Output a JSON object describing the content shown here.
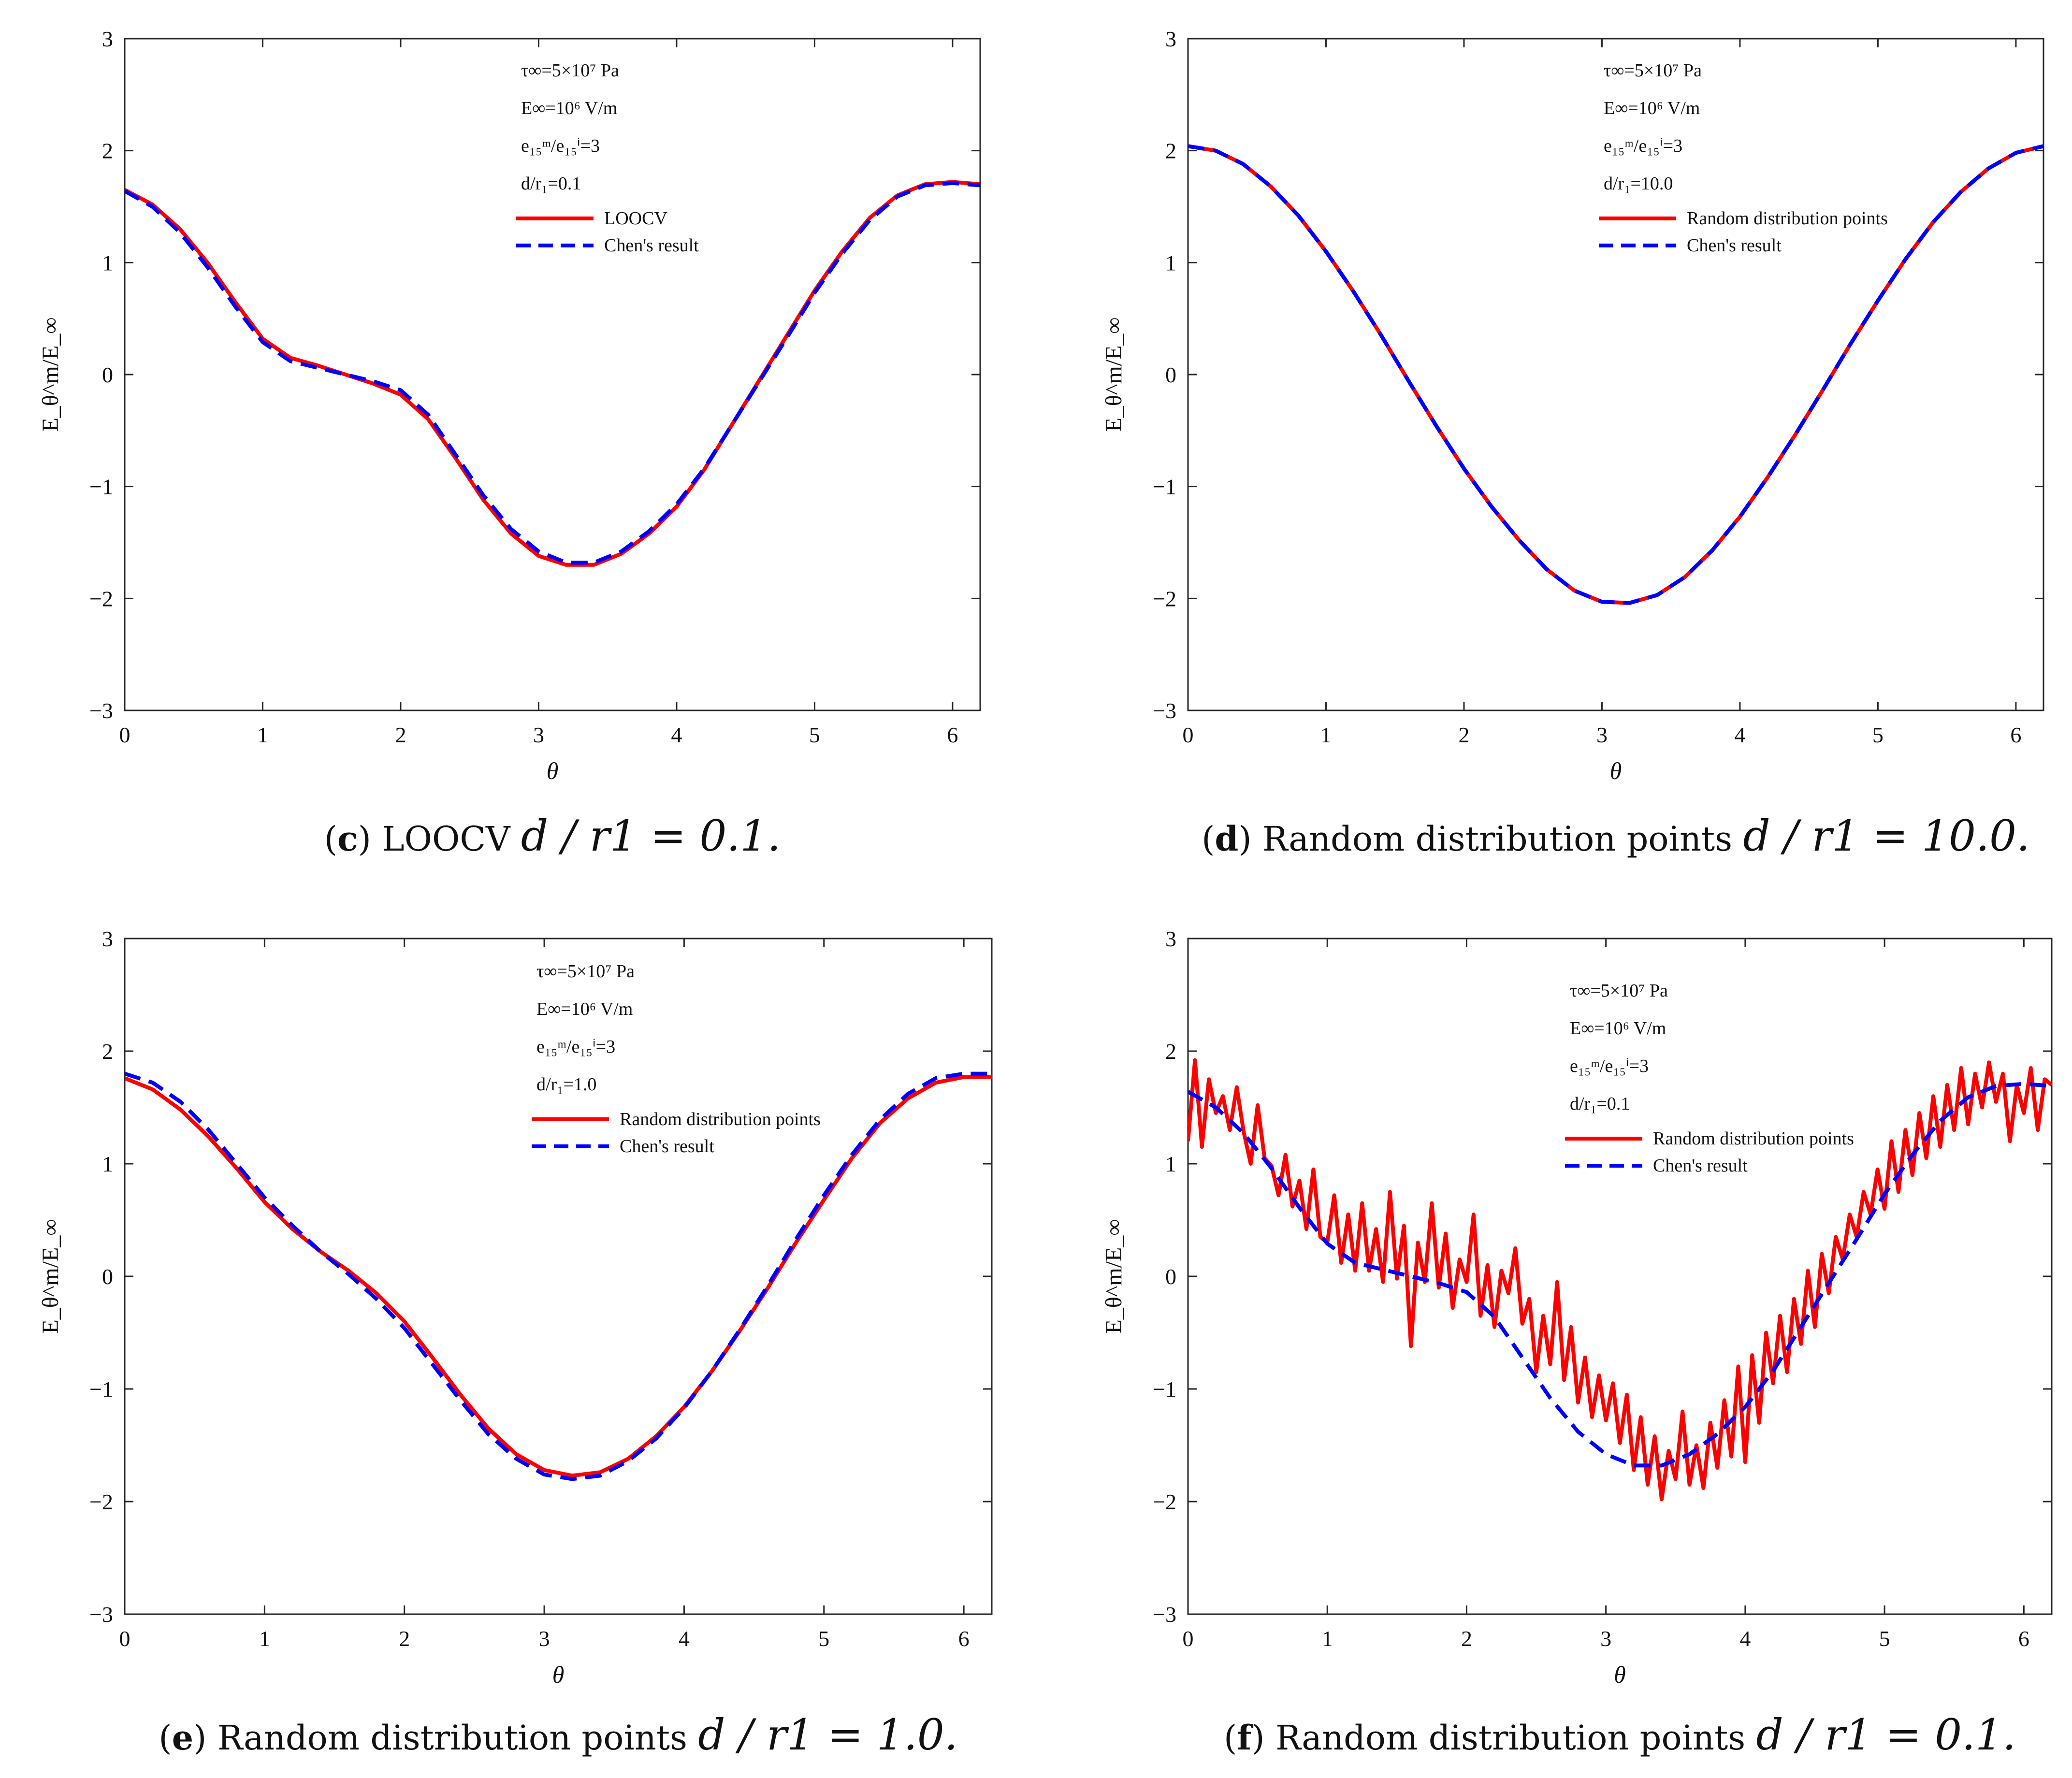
{
  "colors": {
    "lower_red": "#ff0000",
    "chen_blue": "#0000ff",
    "axis": "#262626",
    "text": "#111111"
  },
  "chart_data": [
    {
      "type": "line",
      "panel": "c",
      "caption": {
        "letter": "c",
        "text": "LOOCV",
        "math": "d / r1 = 0.1."
      },
      "xlabel": "θ",
      "ylabel": "E_θ^m/E_∞",
      "xlim": [
        0,
        6.2
      ],
      "ylim": [
        -3,
        3
      ],
      "xticks": [
        "0",
        "1",
        "2",
        "3",
        "4",
        "5",
        "6"
      ],
      "yticks": [
        "−3",
        "−2",
        "−1",
        "0",
        "1",
        "2",
        "3"
      ],
      "annotation": {
        "tau": "τ∞=5×10⁷ Pa",
        "E": "E∞=10⁶ V/m",
        "ratio": "e₁₅ᵐ/e₁₅ⁱ=3",
        "d": "d/r₁=0.1"
      },
      "legend": [
        "LOOCV",
        "Chen's result"
      ],
      "series": [
        {
          "name": "LOOCV",
          "style": "solid",
          "x": [
            0,
            0.2,
            0.4,
            0.6,
            0.8,
            1.0,
            1.2,
            1.4,
            1.6,
            1.8,
            2.0,
            2.2,
            2.4,
            2.6,
            2.8,
            3.0,
            3.2,
            3.4,
            3.6,
            3.8,
            4.0,
            4.2,
            4.4,
            4.6,
            4.8,
            5.0,
            5.2,
            5.4,
            5.6,
            5.8,
            6.0,
            6.2
          ],
          "y": [
            1.65,
            1.52,
            1.3,
            1.0,
            0.65,
            0.32,
            0.15,
            0.08,
            0.0,
            -0.08,
            -0.18,
            -0.4,
            -0.75,
            -1.12,
            -1.42,
            -1.62,
            -1.7,
            -1.7,
            -1.6,
            -1.42,
            -1.18,
            -0.85,
            -0.45,
            -0.05,
            0.35,
            0.75,
            1.1,
            1.4,
            1.6,
            1.7,
            1.72,
            1.7
          ]
        },
        {
          "name": "Chen's result",
          "style": "dashed",
          "x": [
            0,
            0.2,
            0.4,
            0.6,
            0.8,
            1.0,
            1.2,
            1.4,
            1.6,
            1.8,
            2.0,
            2.2,
            2.4,
            2.6,
            2.8,
            3.0,
            3.2,
            3.4,
            3.6,
            3.8,
            4.0,
            4.2,
            4.4,
            4.6,
            4.8,
            5.0,
            5.2,
            5.4,
            5.6,
            5.8,
            6.0,
            6.2
          ],
          "y": [
            1.64,
            1.5,
            1.27,
            0.96,
            0.61,
            0.29,
            0.12,
            0.06,
            0.0,
            -0.06,
            -0.14,
            -0.36,
            -0.72,
            -1.08,
            -1.38,
            -1.58,
            -1.68,
            -1.68,
            -1.58,
            -1.4,
            -1.16,
            -0.84,
            -0.45,
            -0.06,
            0.33,
            0.73,
            1.08,
            1.38,
            1.59,
            1.69,
            1.71,
            1.69
          ]
        }
      ]
    },
    {
      "type": "line",
      "panel": "d",
      "caption": {
        "letter": "d",
        "text": "Random distribution points",
        "math": "d / r1 = 10.0."
      },
      "xlabel": "θ",
      "ylabel": "E_θ^m/E_∞",
      "xlim": [
        0,
        6.2
      ],
      "ylim": [
        -3,
        3
      ],
      "xticks": [
        "0",
        "1",
        "2",
        "3",
        "4",
        "5",
        "6"
      ],
      "yticks": [
        "−3",
        "−2",
        "−1",
        "0",
        "1",
        "2",
        "3"
      ],
      "annotation": {
        "tau": "τ∞=5×10⁷ Pa",
        "E": "E∞=10⁶ V/m",
        "ratio": "e₁₅ᵐ/e₁₅ⁱ=3",
        "d": "d/r₁=10.0"
      },
      "legend": [
        "Random distribution points",
        "Chen's result"
      ],
      "series": [
        {
          "name": "Random distribution points",
          "style": "solid",
          "x": [
            0,
            0.2,
            0.4,
            0.6,
            0.8,
            1.0,
            1.2,
            1.4,
            1.6,
            1.8,
            2.0,
            2.2,
            2.4,
            2.6,
            2.8,
            3.0,
            3.2,
            3.4,
            3.6,
            3.8,
            4.0,
            4.2,
            4.4,
            4.6,
            4.8,
            5.0,
            5.2,
            5.4,
            5.6,
            5.8,
            6.0,
            6.2
          ],
          "y": [
            2.04,
            2.0,
            1.88,
            1.68,
            1.42,
            1.1,
            0.74,
            0.35,
            -0.06,
            -0.46,
            -0.84,
            -1.18,
            -1.48,
            -1.74,
            -1.93,
            -2.03,
            -2.04,
            -1.97,
            -1.81,
            -1.57,
            -1.27,
            -0.92,
            -0.54,
            -0.14,
            0.27,
            0.66,
            1.03,
            1.36,
            1.63,
            1.84,
            1.98,
            2.04
          ]
        },
        {
          "name": "Chen's result",
          "style": "dashed",
          "x": [
            0,
            0.2,
            0.4,
            0.6,
            0.8,
            1.0,
            1.2,
            1.4,
            1.6,
            1.8,
            2.0,
            2.2,
            2.4,
            2.6,
            2.8,
            3.0,
            3.2,
            3.4,
            3.6,
            3.8,
            4.0,
            4.2,
            4.4,
            4.6,
            4.8,
            5.0,
            5.2,
            5.4,
            5.6,
            5.8,
            6.0,
            6.2
          ],
          "y": [
            2.04,
            2.0,
            1.88,
            1.68,
            1.42,
            1.1,
            0.74,
            0.35,
            -0.06,
            -0.46,
            -0.84,
            -1.18,
            -1.48,
            -1.74,
            -1.93,
            -2.03,
            -2.04,
            -1.97,
            -1.81,
            -1.57,
            -1.27,
            -0.92,
            -0.54,
            -0.14,
            0.27,
            0.66,
            1.03,
            1.36,
            1.63,
            1.84,
            1.98,
            2.04
          ]
        }
      ]
    },
    {
      "type": "line",
      "panel": "e",
      "caption": {
        "letter": "e",
        "text": "Random distribution points",
        "math": "d / r1 = 1.0."
      },
      "xlabel": "θ",
      "ylabel": "E_θ^m/E_∞",
      "xlim": [
        0,
        6.2
      ],
      "ylim": [
        -3,
        3
      ],
      "xticks": [
        "0",
        "1",
        "2",
        "3",
        "4",
        "5",
        "6"
      ],
      "yticks": [
        "−3",
        "−2",
        "−1",
        "0",
        "1",
        "2",
        "3"
      ],
      "annotation": {
        "tau": "τ∞=5×10⁷ Pa",
        "E": "E∞=10⁶ V/m",
        "ratio": "e₁₅ᵐ/e₁₅ⁱ=3",
        "d": "d/r₁=1.0"
      },
      "legend": [
        "Random distribution points",
        "Chen's result"
      ],
      "series": [
        {
          "name": "Random distribution points",
          "style": "solid",
          "x": [
            0,
            0.2,
            0.4,
            0.6,
            0.8,
            1.0,
            1.2,
            1.4,
            1.6,
            1.8,
            2.0,
            2.2,
            2.4,
            2.6,
            2.8,
            3.0,
            3.2,
            3.4,
            3.6,
            3.8,
            4.0,
            4.2,
            4.4,
            4.6,
            4.8,
            5.0,
            5.2,
            5.4,
            5.6,
            5.8,
            6.0,
            6.2
          ],
          "y": [
            1.76,
            1.66,
            1.48,
            1.24,
            0.96,
            0.66,
            0.42,
            0.22,
            0.05,
            -0.15,
            -0.4,
            -0.72,
            -1.05,
            -1.35,
            -1.58,
            -1.72,
            -1.77,
            -1.74,
            -1.62,
            -1.42,
            -1.16,
            -0.84,
            -0.48,
            -0.1,
            0.3,
            0.68,
            1.05,
            1.36,
            1.58,
            1.72,
            1.77,
            1.77
          ]
        },
        {
          "name": "Chen's result",
          "style": "dashed",
          "x": [
            0,
            0.2,
            0.4,
            0.6,
            0.8,
            1.0,
            1.2,
            1.4,
            1.6,
            1.8,
            2.0,
            2.2,
            2.4,
            2.6,
            2.8,
            3.0,
            3.2,
            3.4,
            3.6,
            3.8,
            4.0,
            4.2,
            4.4,
            4.6,
            4.8,
            5.0,
            5.2,
            5.4,
            5.6,
            5.8,
            6.0,
            6.2
          ],
          "y": [
            1.8,
            1.72,
            1.55,
            1.3,
            1.0,
            0.7,
            0.45,
            0.22,
            0.02,
            -0.2,
            -0.46,
            -0.78,
            -1.1,
            -1.4,
            -1.62,
            -1.76,
            -1.8,
            -1.77,
            -1.64,
            -1.44,
            -1.17,
            -0.84,
            -0.47,
            -0.08,
            0.33,
            0.72,
            1.08,
            1.39,
            1.62,
            1.76,
            1.8,
            1.8
          ]
        }
      ]
    },
    {
      "type": "line",
      "panel": "f",
      "caption": {
        "letter": "f",
        "text": "Random distribution points",
        "math": "d / r1 = 0.1."
      },
      "xlabel": "θ",
      "ylabel": "E_θ^m/E_∞",
      "xlim": [
        0,
        6.2
      ],
      "ylim": [
        -3,
        3
      ],
      "xticks": [
        "0",
        "1",
        "2",
        "3",
        "4",
        "5",
        "6"
      ],
      "yticks": [
        "−3",
        "−2",
        "−1",
        "0",
        "1",
        "2",
        "3"
      ],
      "annotation": {
        "tau": "τ∞=5×10⁷ Pa",
        "E": "E∞=10⁶ V/m",
        "ratio": "e₁₅ᵐ/e₁₅ⁱ=3",
        "d": "d/r₁=0.1"
      },
      "legend": [
        "Random distribution points",
        "Chen's result"
      ],
      "series": [
        {
          "name": "Random distribution points",
          "style": "solid",
          "x": [
            0,
            0.05,
            0.1,
            0.15,
            0.2,
            0.25,
            0.3,
            0.35,
            0.4,
            0.45,
            0.5,
            0.55,
            0.6,
            0.65,
            0.7,
            0.75,
            0.8,
            0.85,
            0.9,
            0.95,
            1.0,
            1.05,
            1.1,
            1.15,
            1.2,
            1.25,
            1.3,
            1.35,
            1.4,
            1.45,
            1.5,
            1.55,
            1.6,
            1.65,
            1.7,
            1.75,
            1.8,
            1.85,
            1.9,
            1.95,
            2.0,
            2.05,
            2.1,
            2.15,
            2.2,
            2.25,
            2.3,
            2.35,
            2.4,
            2.45,
            2.5,
            2.55,
            2.6,
            2.65,
            2.7,
            2.75,
            2.8,
            2.85,
            2.9,
            2.95,
            3.0,
            3.05,
            3.1,
            3.15,
            3.2,
            3.25,
            3.3,
            3.35,
            3.4,
            3.45,
            3.5,
            3.55,
            3.6,
            3.65,
            3.7,
            3.75,
            3.8,
            3.85,
            3.9,
            3.95,
            4.0,
            4.05,
            4.1,
            4.15,
            4.2,
            4.25,
            4.3,
            4.35,
            4.4,
            4.45,
            4.5,
            4.55,
            4.6,
            4.65,
            4.7,
            4.75,
            4.8,
            4.85,
            4.9,
            4.95,
            5.0,
            5.05,
            5.1,
            5.15,
            5.2,
            5.25,
            5.3,
            5.35,
            5.4,
            5.45,
            5.5,
            5.55,
            5.6,
            5.65,
            5.7,
            5.75,
            5.8,
            5.85,
            5.9,
            5.95,
            6.0,
            6.05,
            6.1,
            6.15,
            6.2
          ],
          "y": [
            1.2,
            1.92,
            1.15,
            1.75,
            1.45,
            1.6,
            1.3,
            1.68,
            1.28,
            1.0,
            1.52,
            1.05,
            0.98,
            0.72,
            1.08,
            0.62,
            0.85,
            0.42,
            0.95,
            0.35,
            0.3,
            0.72,
            0.12,
            0.55,
            0.05,
            0.65,
            0.05,
            0.42,
            -0.05,
            0.75,
            -0.02,
            0.45,
            -0.62,
            0.3,
            -0.05,
            0.65,
            -0.1,
            0.38,
            -0.28,
            0.15,
            -0.05,
            0.55,
            -0.35,
            0.1,
            -0.45,
            0.05,
            -0.15,
            0.25,
            -0.42,
            -0.2,
            -0.85,
            -0.35,
            -0.78,
            -0.05,
            -0.92,
            -0.45,
            -1.12,
            -0.72,
            -1.25,
            -0.88,
            -1.28,
            -0.95,
            -1.48,
            -1.05,
            -1.72,
            -1.25,
            -1.85,
            -1.42,
            -1.98,
            -1.55,
            -1.8,
            -1.2,
            -1.85,
            -1.5,
            -1.88,
            -1.3,
            -1.7,
            -1.1,
            -1.6,
            -0.8,
            -1.65,
            -0.7,
            -1.3,
            -0.5,
            -0.95,
            -0.35,
            -0.85,
            -0.2,
            -0.6,
            0.05,
            -0.45,
            0.2,
            -0.15,
            0.35,
            0.15,
            0.55,
            0.35,
            0.75,
            0.55,
            0.95,
            0.6,
            1.2,
            0.75,
            1.3,
            0.9,
            1.45,
            1.05,
            1.6,
            1.15,
            1.7,
            1.3,
            1.85,
            1.35,
            1.8,
            1.5,
            1.9,
            1.55,
            1.8,
            1.2,
            1.7,
            1.45,
            1.85,
            1.3,
            1.75,
            1.7
          ]
        },
        {
          "name": "Chen's result",
          "style": "dashed",
          "x": [
            0,
            0.2,
            0.4,
            0.6,
            0.8,
            1.0,
            1.2,
            1.4,
            1.6,
            1.8,
            2.0,
            2.2,
            2.4,
            2.6,
            2.8,
            3.0,
            3.2,
            3.4,
            3.6,
            3.8,
            4.0,
            4.2,
            4.4,
            4.6,
            4.8,
            5.0,
            5.2,
            5.4,
            5.6,
            5.8,
            6.0,
            6.2
          ],
          "y": [
            1.64,
            1.5,
            1.27,
            0.96,
            0.61,
            0.29,
            0.12,
            0.06,
            0.0,
            -0.06,
            -0.14,
            -0.36,
            -0.72,
            -1.08,
            -1.38,
            -1.58,
            -1.68,
            -1.68,
            -1.58,
            -1.4,
            -1.16,
            -0.84,
            -0.45,
            -0.06,
            0.33,
            0.73,
            1.08,
            1.38,
            1.59,
            1.69,
            1.71,
            1.69
          ]
        }
      ]
    }
  ]
}
